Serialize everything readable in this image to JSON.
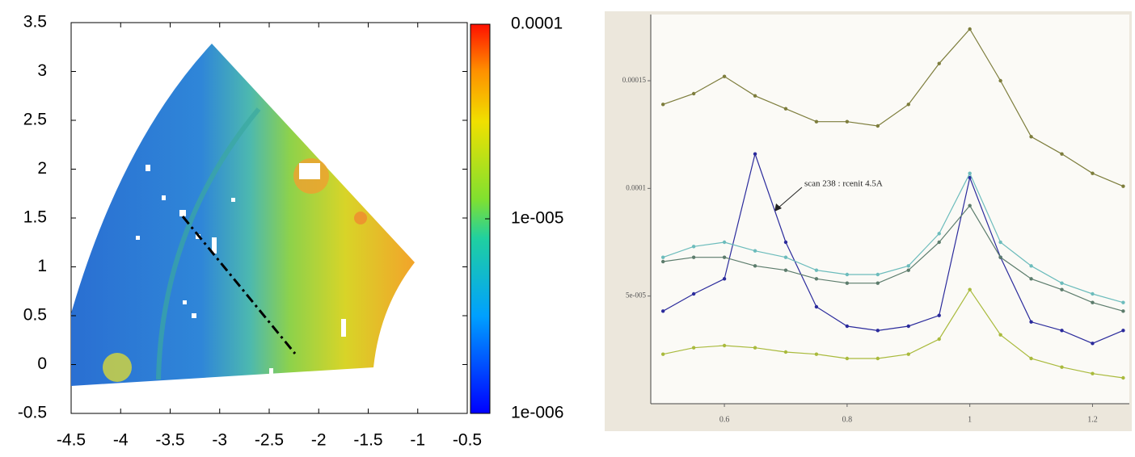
{
  "chart_data": [
    {
      "type": "heatmap",
      "xlim": [
        -4.5,
        -0.5
      ],
      "xticks": [
        -4.5,
        -4,
        -3.5,
        -3,
        -2.5,
        -2,
        -1.5,
        -1,
        -0.5
      ],
      "ylim": [
        -0.5,
        3.5
      ],
      "yticks": [
        -0.5,
        0,
        0.5,
        1,
        1.5,
        2,
        2.5,
        3,
        3.5
      ],
      "colorbar": {
        "log": true,
        "lim": [
          1e-06,
          0.0001
        ],
        "ticks": [
          {
            "value": 1e-06,
            "label": "1e-006"
          },
          {
            "value": 1e-05,
            "label": "1e-005"
          },
          0.0001
        ]
      }
    },
    {
      "type": "line",
      "x": [
        0.5,
        0.55,
        0.6,
        0.65,
        0.7,
        0.75,
        0.8,
        0.85,
        0.9,
        0.95,
        1.0,
        1.05,
        1.1,
        1.15,
        1.2,
        1.25
      ],
      "xlim": [
        0.48,
        1.26
      ],
      "xticks": [
        0.6,
        0.8,
        1,
        1.2
      ],
      "ylim": [
        0,
        0.00018
      ],
      "yticks": [
        {
          "value": 5e-05,
          "label": "5e-005"
        },
        0.0001,
        0.00015
      ],
      "annotation": "scan 238 : rcenit 4.5A",
      "series": [
        {
          "color": "#7d7d3c",
          "values": [
            0.000139,
            0.000144,
            0.000152,
            0.000143,
            0.000137,
            0.000131,
            0.000131,
            0.000129,
            0.000139,
            0.000158,
            0.000174,
            0.00015,
            0.000124,
            0.000116,
            0.000107,
            0.000101
          ]
        },
        {
          "color": "#2b2b9c",
          "values": [
            4.3e-05,
            5.1e-05,
            5.8e-05,
            0.000116,
            7.5e-05,
            4.5e-05,
            3.6e-05,
            3.4e-05,
            3.6e-05,
            4.1e-05,
            0.000105,
            6.8e-05,
            3.8e-05,
            3.4e-05,
            2.8e-05,
            3.4e-05
          ]
        },
        {
          "color": "#6cbcbc",
          "values": [
            6.8e-05,
            7.3e-05,
            7.5e-05,
            7.1e-05,
            6.8e-05,
            6.2e-05,
            6e-05,
            6e-05,
            6.4e-05,
            7.9e-05,
            0.000107,
            7.5e-05,
            6.4e-05,
            5.6e-05,
            5.1e-05,
            4.7e-05
          ]
        },
        {
          "color": "#5c7c6c",
          "values": [
            6.6e-05,
            6.8e-05,
            6.8e-05,
            6.4e-05,
            6.2e-05,
            5.8e-05,
            5.6e-05,
            5.6e-05,
            6.2e-05,
            7.5e-05,
            9.2e-05,
            6.8e-05,
            5.8e-05,
            5.3e-05,
            4.7e-05,
            4.3e-05
          ]
        },
        {
          "color": "#a9ba3c",
          "values": [
            2.3e-05,
            2.6e-05,
            2.7e-05,
            2.6e-05,
            2.4e-05,
            2.3e-05,
            2.1e-05,
            2.1e-05,
            2.3e-05,
            3e-05,
            5.3e-05,
            3.2e-05,
            2.1e-05,
            1.7e-05,
            1.4e-05,
            1.2e-05
          ]
        }
      ]
    }
  ]
}
